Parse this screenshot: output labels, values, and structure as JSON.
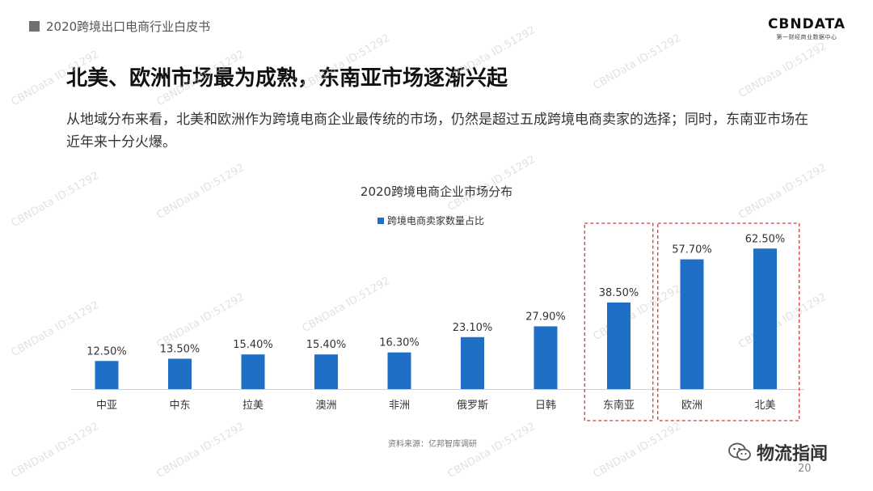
{
  "header": {
    "section_title": "2020跨境出口电商行业白皮书"
  },
  "logo": {
    "main": "CBNDATA",
    "sub": "第一财经商业数据中心"
  },
  "slide": {
    "headline": "北美、欧洲市场最为成熟，东南亚市场逐渐兴起",
    "body": "从地域分布来看，北美和欧洲作为跨境电商企业最传统的市场，仍然是超过五成跨境电商卖家的选择；同时，东南亚市场在近年来十分火爆。"
  },
  "chart_data": {
    "type": "bar",
    "title": "2020跨境电商企业市场分布",
    "categories": [
      "中亚",
      "中东",
      "拉美",
      "澳洲",
      "非洲",
      "俄罗斯",
      "日韩",
      "东南亚",
      "欧洲",
      "北美"
    ],
    "series": [
      {
        "name": "跨境电商卖家数量占比",
        "values": [
          12.5,
          13.5,
          15.4,
          15.4,
          16.3,
          23.1,
          27.9,
          38.5,
          57.7,
          62.5
        ]
      }
    ],
    "value_labels": [
      "12.50%",
      "13.50%",
      "15.40%",
      "15.40%",
      "16.30%",
      "23.10%",
      "27.90%",
      "38.50%",
      "57.70%",
      "62.50%"
    ],
    "legend_position": "top-center",
    "bar_color": "#1f6fc6",
    "highlight_color": "#d23a3a",
    "highlight_groups": [
      [
        "东南亚"
      ],
      [
        "欧洲",
        "北美"
      ]
    ]
  },
  "footer": {
    "source": "资料来源：亿邦智库调研",
    "wechat_label": "物流指闻",
    "page_number": "20"
  },
  "watermark": "CBNData ID:51292"
}
